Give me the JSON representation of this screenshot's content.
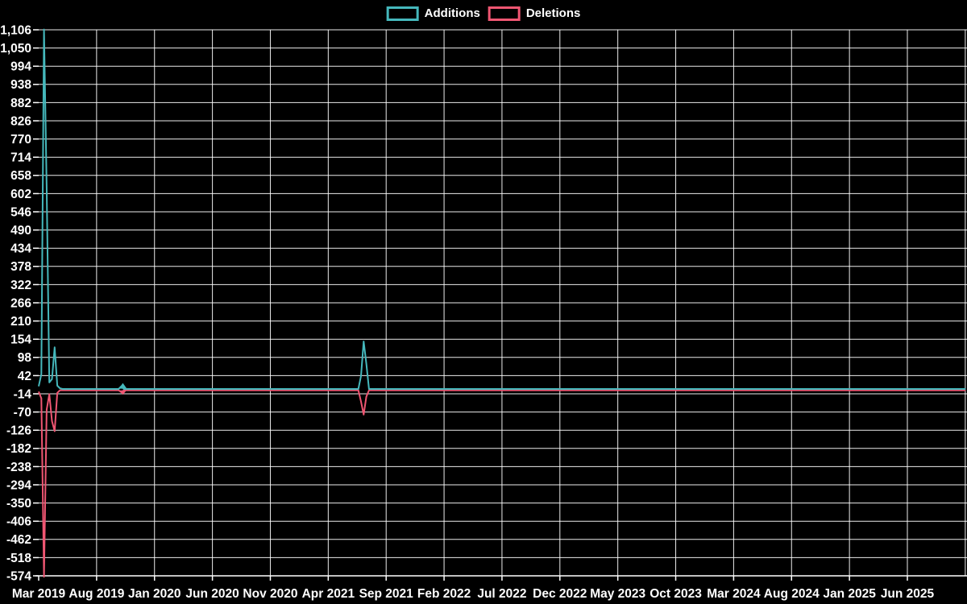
{
  "legend": {
    "additions_label": "Additions",
    "deletions_label": "Deletions"
  },
  "colors": {
    "additions": "#45b8bc",
    "deletions": "#ef5672",
    "background": "#000000",
    "grid": "#ffffff",
    "text": "#ffffff"
  },
  "chart_data": {
    "type": "line",
    "title": "",
    "xlabel": "",
    "ylabel": "",
    "grid": "on",
    "legend_position": "top-center",
    "x_axis": {
      "tick_labels": [
        "Mar 2019",
        "Aug 2019",
        "Jan 2020",
        "Jun 2020",
        "Nov 2020",
        "Apr 2021",
        "Sep 2021",
        "Feb 2022",
        "Jul 2022",
        "Dec 2022",
        "May 2023",
        "Oct 2023",
        "Mar 2024",
        "Aug 2024",
        "Jan 2025",
        "Jun 2025"
      ],
      "tick_interval_months": 5,
      "weeks_per_tick_interval": 21.742,
      "total_weeks_shown": 349
    },
    "y_axis": {
      "max": 1106,
      "min": -574,
      "tick_step": 56,
      "tick_labels": [
        "1,106",
        "1,050",
        "994",
        "938",
        "882",
        "826",
        "770",
        "714",
        "658",
        "602",
        "546",
        "490",
        "434",
        "378",
        "322",
        "266",
        "210",
        "154",
        "98",
        "42",
        "-14",
        "-70",
        "-126",
        "-182",
        "-238",
        "-294",
        "-350",
        "-406",
        "-462",
        "-518",
        "-574"
      ]
    },
    "series": [
      {
        "name": "Additions",
        "color_key": "additions",
        "baseline_value": 0,
        "nonzero_points_week_value": [
          [
            0,
            8
          ],
          [
            1,
            45
          ],
          [
            2,
            1106
          ],
          [
            3,
            620
          ],
          [
            4,
            20
          ],
          [
            5,
            30
          ],
          [
            6,
            128
          ],
          [
            7,
            10
          ],
          [
            8,
            2
          ],
          [
            31,
            8
          ],
          [
            121,
            40
          ],
          [
            122,
            146
          ],
          [
            123,
            78
          ]
        ]
      },
      {
        "name": "Deletions",
        "color_key": "deletions",
        "baseline_value": 0,
        "nonzero_points_week_value": [
          [
            0,
            -4
          ],
          [
            1,
            -25
          ],
          [
            2,
            -574
          ],
          [
            3,
            -60
          ],
          [
            4,
            -12
          ],
          [
            5,
            -95
          ],
          [
            6,
            -126
          ],
          [
            7,
            -8
          ],
          [
            31,
            -6
          ],
          [
            121,
            -35
          ],
          [
            122,
            -75
          ],
          [
            123,
            -20
          ]
        ]
      }
    ],
    "highlight_marker": {
      "week": 31.6,
      "additions_value": 8,
      "deletions_value": -6
    }
  }
}
